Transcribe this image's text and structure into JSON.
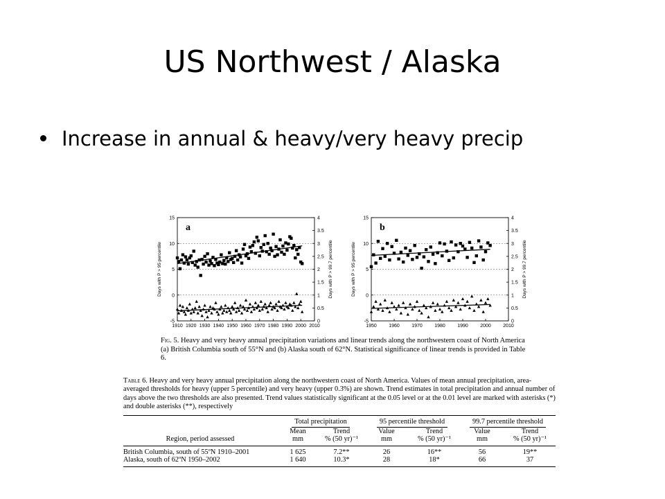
{
  "slide": {
    "title": "US Northwest / Alaska",
    "bullet": "Increase in annual & heavy/very heavy precip"
  },
  "figure": {
    "caption_label": "Fig. 5.",
    "caption_text": "Heavy and very heavy annual precipitation variations and linear trends along the northwestern coast of North America (a) British Columbia south of 55°N and (b) Alaska south of 62°N. Statistical significance of linear trends is provided in Table 6."
  },
  "table": {
    "caption_label": "Table 6.",
    "caption_text": "Heavy and very heavy annual precipitation along the northwestern coast of North America. Values of mean annual precipitation, area-averaged thresholds for heavy (upper 5 percentile) and very heavy (upper 0.3%) are shown. Trend estimates in total precipitation and annual number of days above the two thresholds are also presented. Trend values statistically significant at the 0.05 level or at the 0.01 level are marked with asterisks (*) and double asterisks (**), respectively",
    "group_headers": [
      "Total precipitation",
      "95 percentile threshold",
      "99.7 percentile threshold"
    ],
    "region_header": "Region, period assessed",
    "sub_headers": [
      {
        "top": "Mean",
        "bottom": "mm"
      },
      {
        "top": "Trend",
        "bottom": "% (50 yr)⁻¹"
      },
      {
        "top": "Value",
        "bottom": "mm"
      },
      {
        "top": "Trend",
        "bottom": "% (50 yr)⁻¹"
      },
      {
        "top": "Value",
        "bottom": "mm"
      },
      {
        "top": "Trend",
        "bottom": "% (50 yr)⁻¹"
      }
    ],
    "rows": [
      {
        "region": "British Columbia, south of 55ºN 1910–2001",
        "cells": [
          "1 625",
          "7.2**",
          "26",
          "16**",
          "56",
          "19**"
        ]
      },
      {
        "region": "Alaska, south of 62ºN 1950–2002",
        "cells": [
          "1 640",
          "10.3*",
          "28",
          "18*",
          "66",
          "37"
        ]
      }
    ]
  },
  "chart_data": [
    {
      "type": "scatter",
      "panel_label": "a",
      "x_ticks": [
        "1910",
        "1920",
        "1930",
        "1940",
        "1950",
        "1960",
        "1970",
        "1980",
        "1990",
        "2000",
        "2010"
      ],
      "xlim": [
        1910,
        2010
      ],
      "left_axis": {
        "label": "Days with P > 95 percentile",
        "ticks": [
          "-5",
          "0",
          "5",
          "10",
          "15"
        ],
        "ylim": [
          -5,
          15
        ]
      },
      "right_axis": {
        "label": "Days with P > 99.7 percentile",
        "ticks": [
          "0",
          "0.5",
          "1",
          "1.5",
          "2",
          "2.5",
          "3",
          "3.5",
          "4"
        ],
        "ylim": [
          0,
          4
        ]
      },
      "grid": "dashed horizontal",
      "series": [
        {
          "marker": "square",
          "axis": "left",
          "x": [
            1910,
            1911,
            1912,
            1913,
            1914,
            1915,
            1916,
            1917,
            1918,
            1919,
            1920,
            1921,
            1922,
            1923,
            1924,
            1925,
            1926,
            1927,
            1928,
            1929,
            1930,
            1931,
            1932,
            1933,
            1934,
            1935,
            1936,
            1937,
            1938,
            1939,
            1940,
            1941,
            1942,
            1943,
            1944,
            1945,
            1946,
            1947,
            1948,
            1949,
            1950,
            1951,
            1952,
            1953,
            1954,
            1955,
            1956,
            1957,
            1958,
            1959,
            1960,
            1961,
            1962,
            1963,
            1964,
            1965,
            1966,
            1967,
            1968,
            1969,
            1970,
            1971,
            1972,
            1973,
            1974,
            1975,
            1976,
            1977,
            1978,
            1979,
            1980,
            1981,
            1982,
            1983,
            1984,
            1985,
            1986,
            1987,
            1988,
            1989,
            1990,
            1991,
            1992,
            1993,
            1994,
            1995,
            1996,
            1997,
            1998,
            1999,
            2000,
            2001
          ],
          "y": [
            7.2,
            6.5,
            5.1,
            6.8,
            7.8,
            6.2,
            7.4,
            6.8,
            6.0,
            7.2,
            7.6,
            6.3,
            8.5,
            5.8,
            6.5,
            5.4,
            6.8,
            3.8,
            6.9,
            6.0,
            7.5,
            6.4,
            8.0,
            5.8,
            6.6,
            6.1,
            7.3,
            5.7,
            6.9,
            6.2,
            5.9,
            6.4,
            7.8,
            6.1,
            6.7,
            6.0,
            7.2,
            6.5,
            8.2,
            6.9,
            7.1,
            6.3,
            7.5,
            8.6,
            6.8,
            7.8,
            7.4,
            6.2,
            8.9,
            9.8,
            7.6,
            8.0,
            7.1,
            9.3,
            8.4,
            9.6,
            10.3,
            8.1,
            11.2,
            10.5,
            7.6,
            9.2,
            8.5,
            9.8,
            11.5,
            8.4,
            10.0,
            7.9,
            9.1,
            8.6,
            11.8,
            7.5,
            9.4,
            7.8,
            8.9,
            10.7,
            8.3,
            9.5,
            7.9,
            10.1,
            8.7,
            9.9,
            11.3,
            11.0,
            9.1,
            9.6,
            7.2,
            8.8,
            7.9,
            9.2,
            6.4,
            6.1
          ]
        },
        {
          "marker": "triangle",
          "axis": "right",
          "x": [
            1910,
            1911,
            1912,
            1913,
            1914,
            1915,
            1916,
            1917,
            1918,
            1919,
            1920,
            1921,
            1922,
            1923,
            1924,
            1925,
            1926,
            1927,
            1928,
            1929,
            1930,
            1931,
            1932,
            1933,
            1934,
            1935,
            1936,
            1937,
            1938,
            1939,
            1940,
            1941,
            1942,
            1943,
            1944,
            1945,
            1946,
            1947,
            1948,
            1949,
            1950,
            1951,
            1952,
            1953,
            1954,
            1955,
            1956,
            1957,
            1958,
            1959,
            1960,
            1961,
            1962,
            1963,
            1964,
            1965,
            1966,
            1967,
            1968,
            1969,
            1970,
            1971,
            1972,
            1973,
            1974,
            1975,
            1976,
            1977,
            1978,
            1979,
            1980,
            1981,
            1982,
            1983,
            1984,
            1985,
            1986,
            1987,
            1988,
            1989,
            1990,
            1991,
            1992,
            1993,
            1994,
            1995,
            1996,
            1997,
            1998,
            1999,
            2000,
            2001
          ],
          "y": [
            0.45,
            0.3,
            0.6,
            0.4,
            0.55,
            0.35,
            0.25,
            0.5,
            0.4,
            0.65,
            0.3,
            0.45,
            0.35,
            0.5,
            0.75,
            0.3,
            0.55,
            0.4,
            0.2,
            0.45,
            0.6,
            0.35,
            0.15,
            0.4,
            0.55,
            0.3,
            0.5,
            0.45,
            0.7,
            0.35,
            0.25,
            0.45,
            0.55,
            0.3,
            0.4,
            0.6,
            0.35,
            0.5,
            0.4,
            0.3,
            0.55,
            0.45,
            0.7,
            0.35,
            0.5,
            0.4,
            0.6,
            0.3,
            0.55,
            0.45,
            0.8,
            0.4,
            0.5,
            0.65,
            0.35,
            0.55,
            0.45,
            0.7,
            0.5,
            0.6,
            0.4,
            0.75,
            0.45,
            0.55,
            0.65,
            0.5,
            0.35,
            0.6,
            0.7,
            0.45,
            0.55,
            0.5,
            0.65,
            0.4,
            0.75,
            0.55,
            0.5,
            0.6,
            0.45,
            0.7,
            0.55,
            0.5,
            0.65,
            0.6,
            0.4,
            0.7,
            0.55,
            1.05,
            0.5,
            0.65,
            0.75,
            0.35
          ]
        }
      ]
    },
    {
      "type": "scatter",
      "panel_label": "b",
      "x_ticks": [
        "1950",
        "1960",
        "1970",
        "1980",
        "1990",
        "2000",
        "2010"
      ],
      "xlim": [
        1950,
        2010
      ],
      "left_axis": {
        "label": "Days with P > 95 percentile",
        "ticks": [
          "-5",
          "0",
          "5",
          "10",
          "15"
        ],
        "ylim": [
          -5,
          15
        ]
      },
      "right_axis": {
        "label": "Days with P > 99.7 percentile",
        "ticks": [
          "0",
          "0.5",
          "1",
          "1.5",
          "2",
          "2.5",
          "3",
          "3.5",
          "4"
        ],
        "ylim": [
          0,
          4
        ]
      },
      "grid": "dashed horizontal",
      "series": [
        {
          "marker": "square",
          "axis": "left",
          "x": [
            1950,
            1951,
            1952,
            1953,
            1954,
            1955,
            1956,
            1957,
            1958,
            1959,
            1960,
            1961,
            1962,
            1963,
            1964,
            1965,
            1966,
            1967,
            1968,
            1969,
            1970,
            1971,
            1972,
            1973,
            1974,
            1975,
            1976,
            1977,
            1978,
            1979,
            1980,
            1981,
            1982,
            1983,
            1984,
            1985,
            1986,
            1987,
            1988,
            1989,
            1990,
            1991,
            1992,
            1993,
            1994,
            1995,
            1996,
            1997,
            1998,
            1999,
            2000,
            2001,
            2002
          ],
          "y": [
            5.5,
            7.8,
            6.2,
            10.4,
            7.1,
            9.0,
            7.5,
            10.0,
            6.8,
            9.4,
            8.1,
            10.6,
            7.0,
            8.3,
            6.4,
            9.1,
            7.7,
            8.6,
            6.9,
            9.6,
            7.3,
            8.0,
            5.2,
            7.4,
            8.8,
            6.5,
            9.3,
            7.9,
            6.1,
            8.2,
            10.1,
            7.6,
            9.9,
            8.5,
            6.7,
            10.3,
            7.2,
            9.7,
            8.4,
            10.0,
            9.5,
            8.9,
            7.3,
            10.2,
            9.1,
            6.3,
            7.6,
            10.5,
            9.3,
            6.8,
            8.4,
            10.1,
            9.6
          ]
        },
        {
          "marker": "triangle",
          "axis": "right",
          "x": [
            1950,
            1951,
            1952,
            1953,
            1954,
            1955,
            1956,
            1957,
            1958,
            1959,
            1960,
            1961,
            1962,
            1963,
            1964,
            1965,
            1966,
            1967,
            1968,
            1969,
            1970,
            1971,
            1972,
            1973,
            1974,
            1975,
            1976,
            1977,
            1978,
            1979,
            1980,
            1981,
            1982,
            1983,
            1984,
            1985,
            1986,
            1987,
            1988,
            1989,
            1990,
            1991,
            1992,
            1993,
            1994,
            1995,
            1996,
            1997,
            1998,
            1999,
            2000,
            2001,
            2002
          ],
          "y": [
            0.35,
            0.55,
            0.75,
            0.45,
            0.65,
            0.4,
            0.8,
            0.5,
            0.35,
            0.7,
            0.55,
            0.45,
            0.6,
            0.3,
            0.7,
            0.5,
            0.25,
            0.65,
            0.45,
            0.55,
            0.75,
            0.4,
            0.3,
            0.6,
            0.5,
            0.15,
            0.55,
            0.7,
            0.4,
            0.65,
            0.45,
            0.35,
            0.6,
            0.75,
            0.5,
            0.4,
            0.8,
            0.55,
            0.7,
            0.45,
            0.85,
            0.6,
            0.75,
            0.5,
            0.95,
            0.4,
            0.65,
            0.55,
            0.8,
            0.35,
            0.7,
            0.85,
            0.6
          ]
        }
      ]
    }
  ]
}
